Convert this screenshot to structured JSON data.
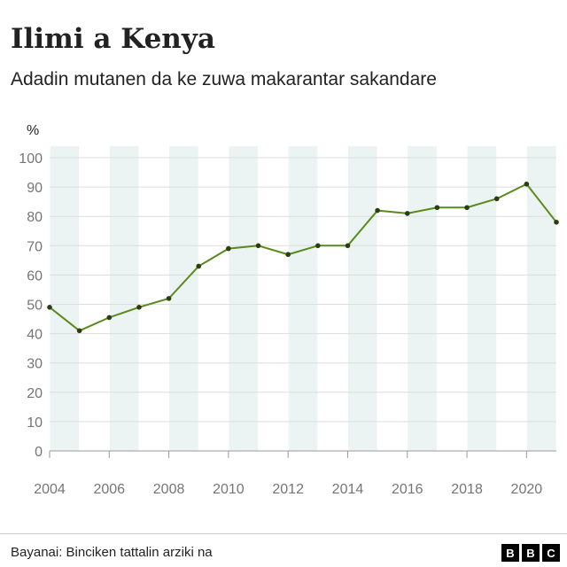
{
  "title": "Ilimi a Kenya",
  "subtitle": "Adadin mutanen da ke zuwa makarantar sakandare",
  "source": "Bayanai: Binciken tattalin arziki na",
  "logo_letters": [
    "B",
    "B",
    "C"
  ],
  "colors": {
    "line": "#5a8a1c",
    "marker": "#2d3d12",
    "band": "#ecf3f3",
    "gridline": "#dddddd",
    "axis": "#999999"
  },
  "chart_data": {
    "type": "line",
    "title": "Ilimi a Kenya",
    "subtitle": "Adadin mutanen da ke zuwa makarantar sakandare",
    "ylabel": "%",
    "xlabel": "",
    "ylim": [
      0,
      100
    ],
    "xlim": [
      2004,
      2021
    ],
    "yticks": [
      0,
      10,
      20,
      30,
      40,
      50,
      60,
      70,
      80,
      90,
      100
    ],
    "xticks": [
      2004,
      2006,
      2008,
      2010,
      2012,
      2014,
      2016,
      2018,
      2020
    ],
    "grid": "horizontal gridlines with alternating vertical year bands",
    "series": [
      {
        "x": [
          2004,
          2005,
          2006,
          2007,
          2008,
          2009,
          2010,
          2011,
          2012,
          2013,
          2014,
          2015,
          2016,
          2017,
          2018,
          2019,
          2020,
          2021
        ],
        "values": [
          49,
          41,
          45.5,
          49,
          52,
          63,
          69,
          70,
          67,
          70,
          70,
          82,
          81,
          83,
          83,
          86,
          91,
          78
        ]
      }
    ]
  }
}
